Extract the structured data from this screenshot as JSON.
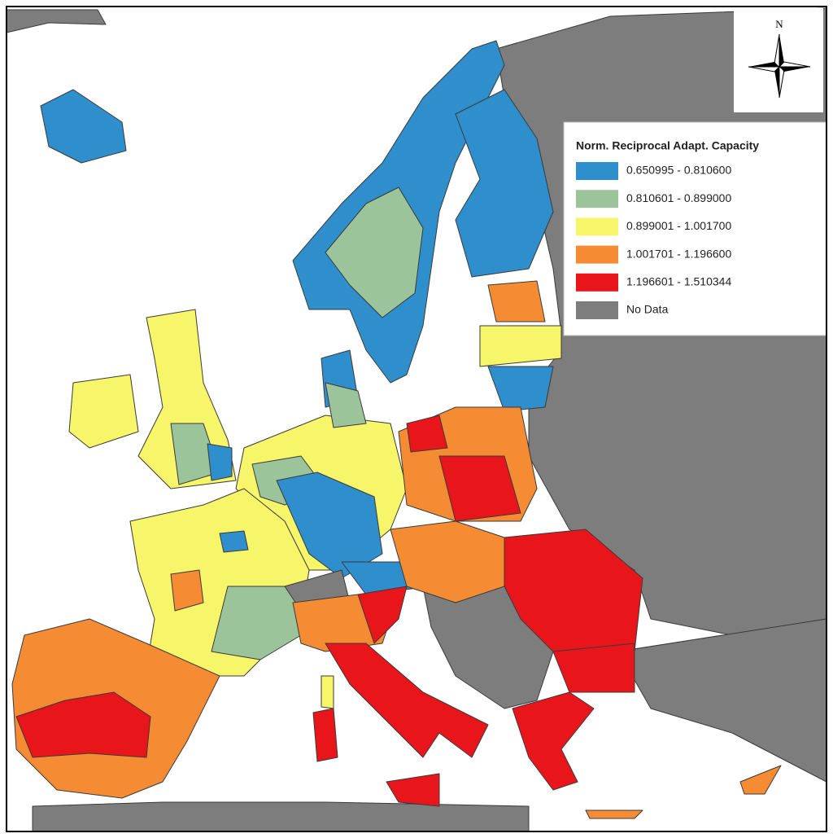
{
  "legend": {
    "title": "Norm. Reciprocal Adapt. Capacity",
    "items": [
      {
        "label": "0.650995 - 0.810600",
        "color": "#2e8fcc"
      },
      {
        "label": "0.810601 - 0.899000",
        "color": "#9cc49a"
      },
      {
        "label": "0.899001 - 1.001700",
        "color": "#f7f56a"
      },
      {
        "label": "1.001701 - 1.196600",
        "color": "#f58c34"
      },
      {
        "label": "1.196601 - 1.510344",
        "color": "#e8151b"
      },
      {
        "label": "No Data",
        "color": "#7d7d7d"
      }
    ]
  },
  "north_arrow": {
    "label": "N"
  }
}
